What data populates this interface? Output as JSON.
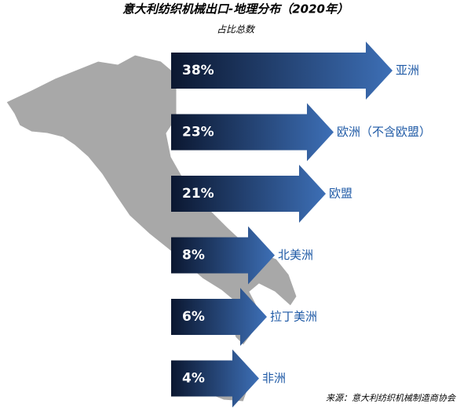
{
  "chart_data": {
    "type": "arrow-bar",
    "title": "意大利纺织机械出口-地理分布（2020年）",
    "subtitle": "占比总数",
    "categories": [
      "亚洲",
      "欧洲（不含欧盟）",
      "欧盟",
      "北美洲",
      "拉丁美洲",
      "非洲"
    ],
    "values": [
      38,
      23,
      21,
      8,
      6,
      4
    ],
    "value_labels": [
      "38%",
      "23%",
      "21%",
      "8%",
      "6%",
      "4%"
    ],
    "color": "#3d6fb6",
    "source": "来源：意大利纺织机械制造商协会"
  }
}
